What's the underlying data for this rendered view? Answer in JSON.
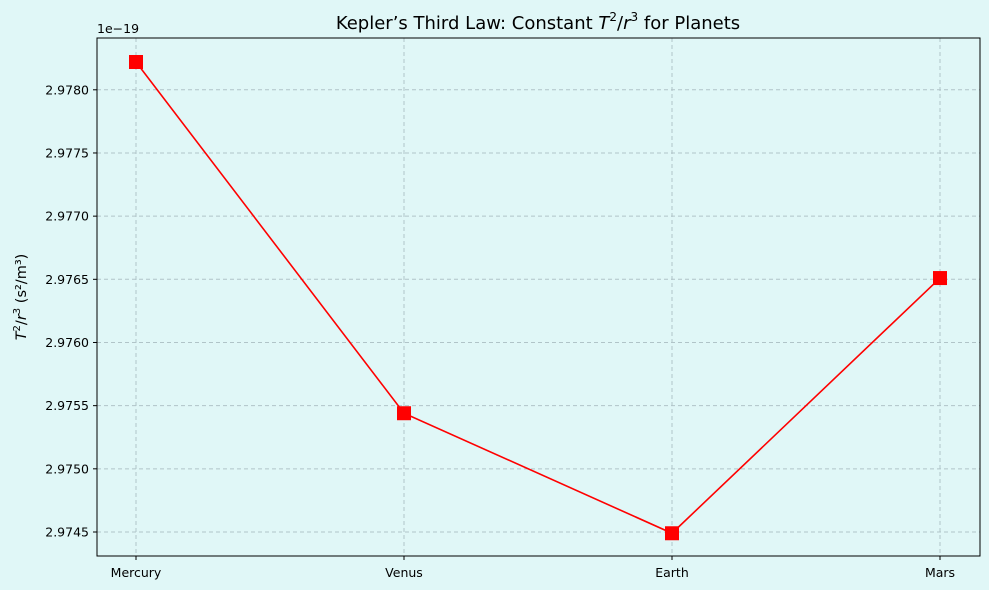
{
  "chart_data": {
    "type": "line",
    "title": "Kepler’s Third Law: Constant ",
    "title_math": {
      "t_base": "T",
      "t_exp": "2",
      "slash": "/",
      "r_base": "r",
      "r_exp": "3",
      "suffix": " for Planets"
    },
    "ylabel_math": {
      "t_base": "T",
      "t_exp": "2",
      "slash": "/",
      "r_base": "r",
      "r_exp": "3",
      "units": " (s²/m³)"
    },
    "xlabel": "",
    "categories": [
      "Mercury",
      "Venus",
      "Earth",
      "Mars"
    ],
    "series": [
      {
        "values": [
          2.97822,
          2.97544,
          2.97449,
          2.97651
        ],
        "color": "#ff0000",
        "marker": "square"
      }
    ],
    "y_scale_offset": "1e−19",
    "ylim": [
      2.97431,
      2.97841
    ],
    "yticks": [
      2.9745,
      2.975,
      2.9755,
      2.976,
      2.9765,
      2.977,
      2.9775,
      2.978
    ],
    "ytick_labels": [
      "2.9745",
      "2.9750",
      "2.9755",
      "2.9760",
      "2.9765",
      "2.9770",
      "2.9775",
      "2.9780"
    ],
    "grid": true,
    "grid_style": "dashed",
    "background": "#e0f7f7"
  }
}
